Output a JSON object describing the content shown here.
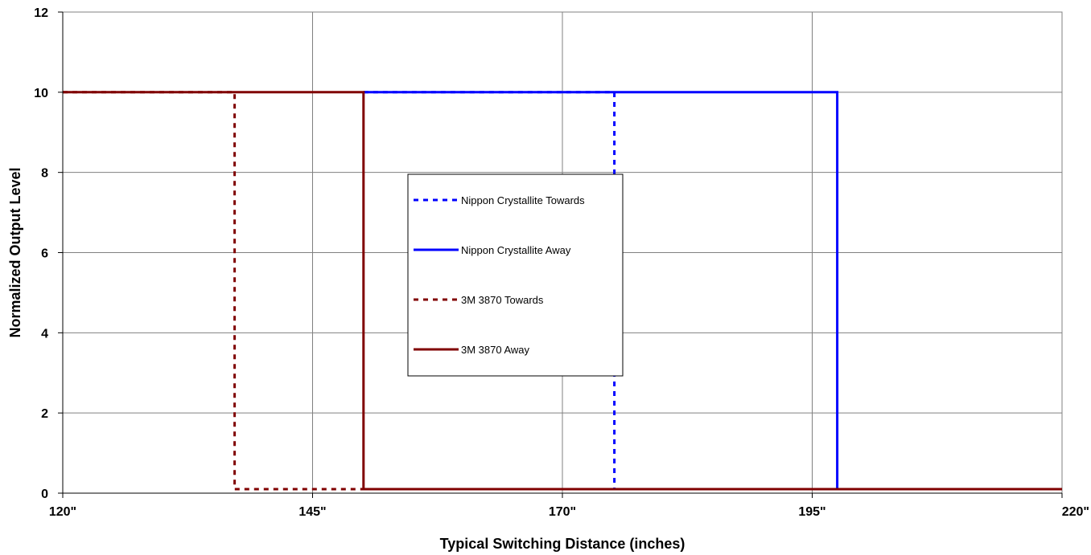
{
  "chart_data": {
    "type": "line",
    "xlabel": "Typical Switching Distance (inches)",
    "ylabel": "Normalized Output Level",
    "xlim": [
      120,
      220
    ],
    "ylim": [
      0,
      12
    ],
    "x_ticks": [
      {
        "value": 120,
        "label": "120\""
      },
      {
        "value": 145,
        "label": "145\""
      },
      {
        "value": 170,
        "label": "170\""
      },
      {
        "value": 195,
        "label": "195\""
      },
      {
        "value": 220,
        "label": "220\""
      }
    ],
    "y_ticks": [
      {
        "value": 0,
        "label": "0"
      },
      {
        "value": 2,
        "label": "2"
      },
      {
        "value": 4,
        "label": "4"
      },
      {
        "value": 6,
        "label": "6"
      },
      {
        "value": 8,
        "label": "8"
      },
      {
        "value": 10,
        "label": "10"
      },
      {
        "value": 12,
        "label": "12"
      }
    ],
    "grid": true,
    "legend_position": "center",
    "series": [
      {
        "name": "Nippon Crystallite Towards",
        "color": "#0000FF",
        "style": "dashed",
        "points": [
          [
            150.1,
            10
          ],
          [
            175.2,
            10
          ],
          [
            175.2,
            0.1
          ],
          [
            220,
            0.1
          ]
        ]
      },
      {
        "name": "Nippon Crystallite Away",
        "color": "#0000FF",
        "style": "solid",
        "points": [
          [
            150.1,
            10
          ],
          [
            197.5,
            10
          ],
          [
            197.5,
            0.1
          ],
          [
            220,
            0.1
          ]
        ]
      },
      {
        "name": "3M 3870 Towards",
        "color": "#800000",
        "style": "dashed",
        "points": [
          [
            120,
            10
          ],
          [
            137.2,
            10
          ],
          [
            137.2,
            0.1
          ],
          [
            150.1,
            0.1
          ],
          [
            150.1,
            0.1
          ],
          [
            220,
            0.1
          ]
        ]
      },
      {
        "name": "3M 3870 Away",
        "color": "#800000",
        "style": "solid",
        "points": [
          [
            120,
            10
          ],
          [
            150.1,
            10
          ],
          [
            150.1,
            0.1
          ],
          [
            220,
            0.1
          ]
        ]
      }
    ]
  }
}
